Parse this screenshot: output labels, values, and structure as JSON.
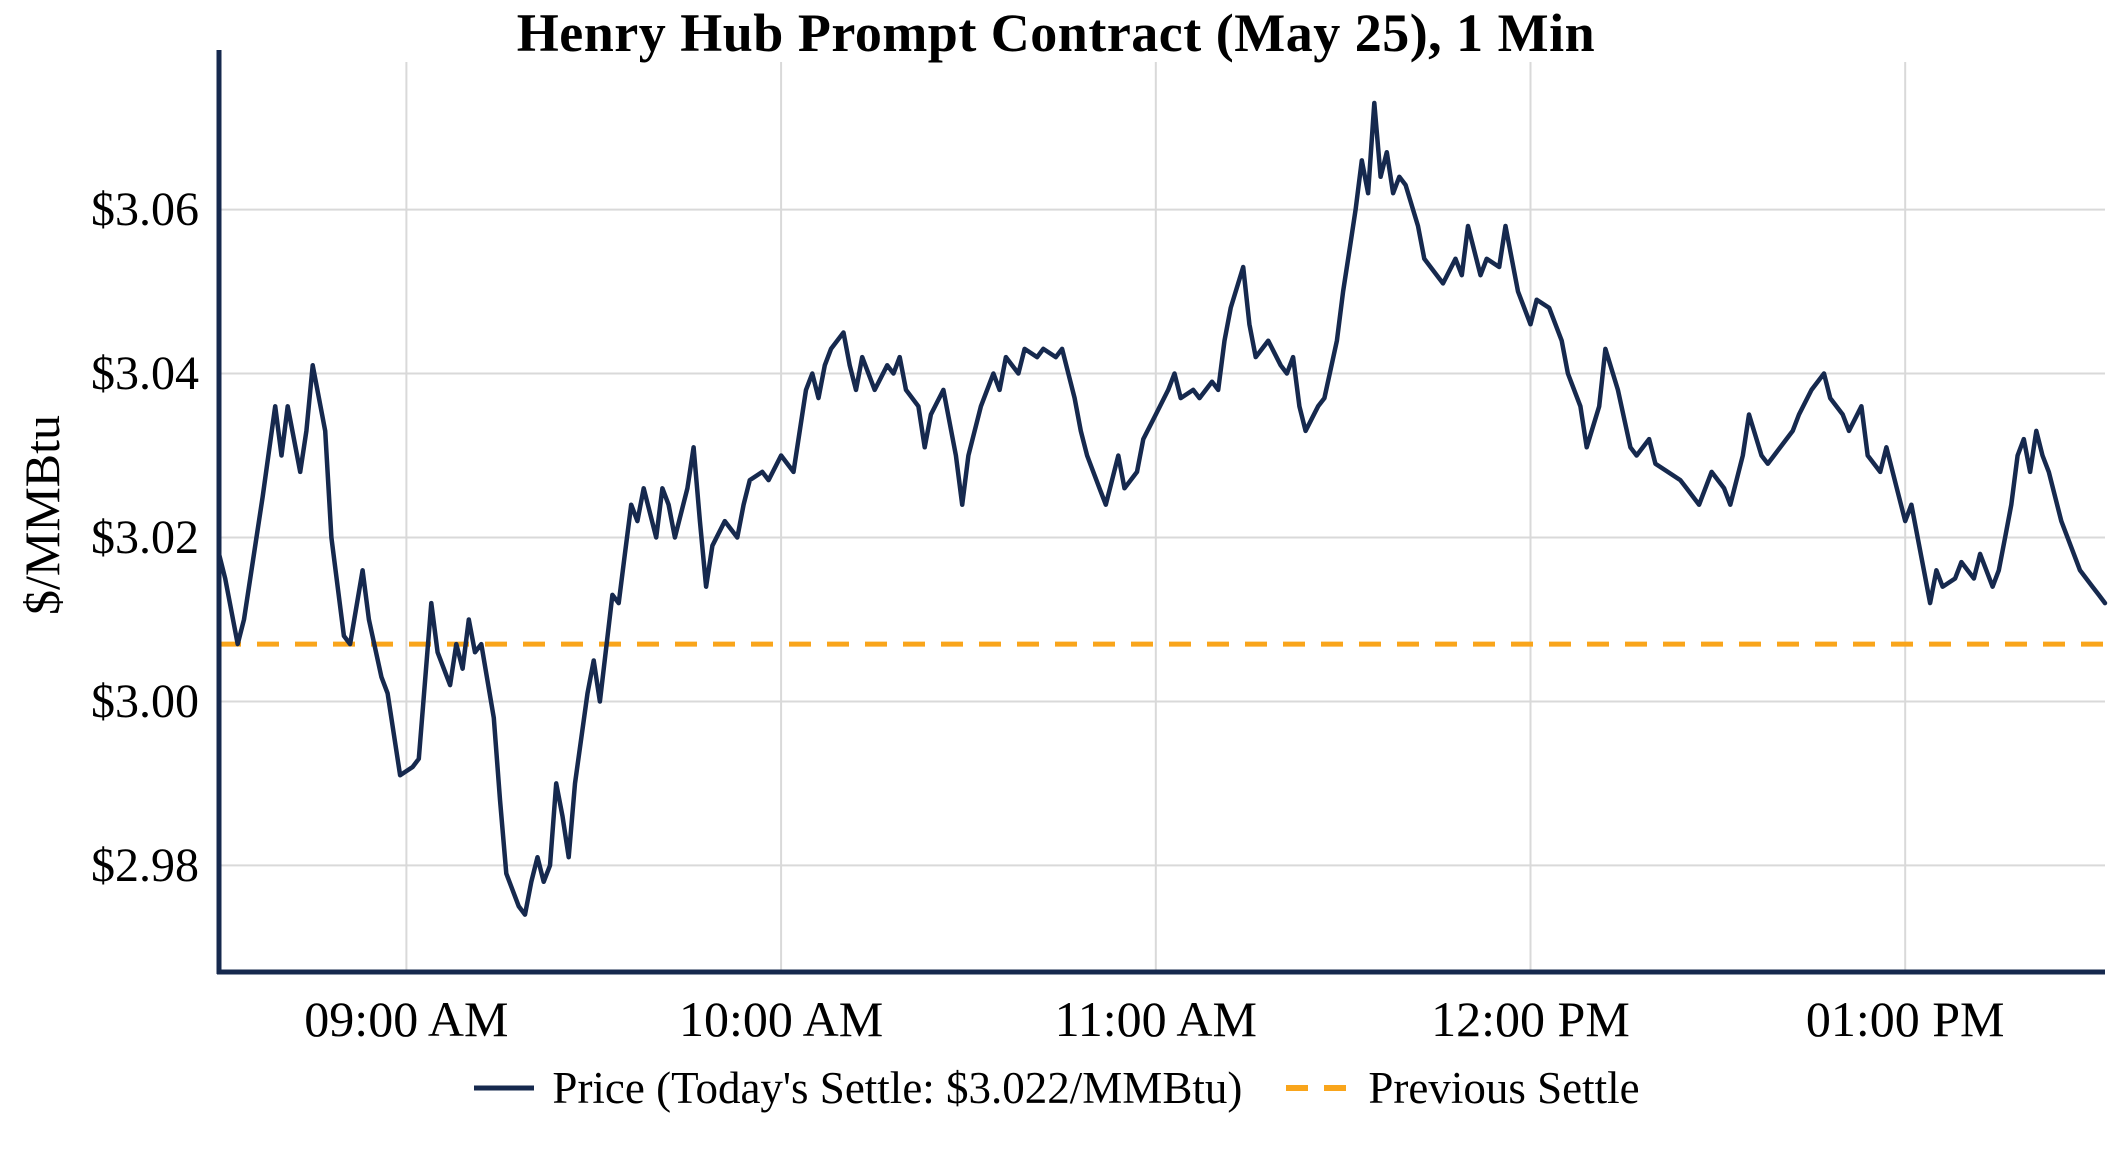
{
  "chart": {
    "title": "Henry Hub Prompt Contract (May 25), 1 Min",
    "ylabel": "$/MMBtu"
  },
  "legend": {
    "price_label": "Price (Today's Settle: $3.022/MMBtu)",
    "prev_settle_label": "Previous Settle"
  },
  "colors": {
    "price_line": "#16294e",
    "prev_settle": "#f9a51b",
    "grid": "#d9d9d9",
    "axis": "#16294e",
    "text": "#000000"
  },
  "chart_data": {
    "type": "line",
    "title": "Henry Hub Prompt Contract (May 25), 1 Min",
    "xlabel": "",
    "ylabel": "$/MMBtu",
    "x_unit": "minutes_since_midnight",
    "x_domain": [
      510,
      812
    ],
    "y_domain": [
      2.967,
      3.078
    ],
    "grid": true,
    "legend_position": "bottom",
    "todays_settle": 3.022,
    "previous_settle": {
      "name": "Previous Settle",
      "value": 3.007,
      "style": "dashed"
    },
    "x_ticks": [
      {
        "minutes": 540,
        "label": "09:00 AM"
      },
      {
        "minutes": 600,
        "label": "10:00 AM"
      },
      {
        "minutes": 660,
        "label": "11:00 AM"
      },
      {
        "minutes": 720,
        "label": "12:00 PM"
      },
      {
        "minutes": 780,
        "label": "01:00 PM"
      }
    ],
    "y_ticks": [
      {
        "value": 2.98,
        "label": "$2.98"
      },
      {
        "value": 3.0,
        "label": "$3.00"
      },
      {
        "value": 3.02,
        "label": "$3.02"
      },
      {
        "value": 3.04,
        "label": "$3.04"
      },
      {
        "value": 3.06,
        "label": "$3.06"
      }
    ],
    "series": [
      {
        "name": "Price (Today's Settle: $3.022/MMBtu)",
        "points": [
          [
            510,
            3.018
          ],
          [
            511,
            3.015
          ],
          [
            513,
            3.007
          ],
          [
            514,
            3.01
          ],
          [
            517,
            3.025
          ],
          [
            519,
            3.036
          ],
          [
            520,
            3.03
          ],
          [
            521,
            3.036
          ],
          [
            523,
            3.028
          ],
          [
            524,
            3.033
          ],
          [
            525,
            3.041
          ],
          [
            527,
            3.033
          ],
          [
            528,
            3.02
          ],
          [
            530,
            3.008
          ],
          [
            531,
            3.007
          ],
          [
            533,
            3.016
          ],
          [
            534,
            3.01
          ],
          [
            536,
            3.003
          ],
          [
            537,
            3.001
          ],
          [
            539,
            2.991
          ],
          [
            541,
            2.992
          ],
          [
            542,
            2.993
          ],
          [
            544,
            3.012
          ],
          [
            545,
            3.006
          ],
          [
            547,
            3.002
          ],
          [
            548,
            3.007
          ],
          [
            549,
            3.004
          ],
          [
            550,
            3.01
          ],
          [
            551,
            3.006
          ],
          [
            552,
            3.007
          ],
          [
            554,
            2.998
          ],
          [
            555,
            2.988
          ],
          [
            556,
            2.979
          ],
          [
            558,
            2.975
          ],
          [
            559,
            2.974
          ],
          [
            560,
            2.978
          ],
          [
            561,
            2.981
          ],
          [
            562,
            2.978
          ],
          [
            563,
            2.98
          ],
          [
            564,
            2.99
          ],
          [
            565,
            2.986
          ],
          [
            566,
            2.981
          ],
          [
            567,
            2.99
          ],
          [
            569,
            3.001
          ],
          [
            570,
            3.005
          ],
          [
            571,
            3.0
          ],
          [
            573,
            3.013
          ],
          [
            574,
            3.012
          ],
          [
            575,
            3.018
          ],
          [
            576,
            3.024
          ],
          [
            577,
            3.022
          ],
          [
            578,
            3.026
          ],
          [
            580,
            3.02
          ],
          [
            581,
            3.026
          ],
          [
            582,
            3.024
          ],
          [
            583,
            3.02
          ],
          [
            585,
            3.026
          ],
          [
            586,
            3.031
          ],
          [
            587,
            3.022
          ],
          [
            588,
            3.014
          ],
          [
            589,
            3.019
          ],
          [
            591,
            3.022
          ],
          [
            593,
            3.02
          ],
          [
            594,
            3.024
          ],
          [
            595,
            3.027
          ],
          [
            597,
            3.028
          ],
          [
            598,
            3.027
          ],
          [
            600,
            3.03
          ],
          [
            602,
            3.028
          ],
          [
            604,
            3.038
          ],
          [
            605,
            3.04
          ],
          [
            606,
            3.037
          ],
          [
            607,
            3.041
          ],
          [
            608,
            3.043
          ],
          [
            610,
            3.045
          ],
          [
            611,
            3.041
          ],
          [
            612,
            3.038
          ],
          [
            613,
            3.042
          ],
          [
            615,
            3.038
          ],
          [
            617,
            3.041
          ],
          [
            618,
            3.04
          ],
          [
            619,
            3.042
          ],
          [
            620,
            3.038
          ],
          [
            622,
            3.036
          ],
          [
            623,
            3.031
          ],
          [
            624,
            3.035
          ],
          [
            626,
            3.038
          ],
          [
            628,
            3.03
          ],
          [
            629,
            3.024
          ],
          [
            630,
            3.03
          ],
          [
            632,
            3.036
          ],
          [
            634,
            3.04
          ],
          [
            635,
            3.038
          ],
          [
            636,
            3.042
          ],
          [
            638,
            3.04
          ],
          [
            639,
            3.043
          ],
          [
            641,
            3.042
          ],
          [
            642,
            3.043
          ],
          [
            644,
            3.042
          ],
          [
            645,
            3.043
          ],
          [
            647,
            3.037
          ],
          [
            648,
            3.033
          ],
          [
            649,
            3.03
          ],
          [
            651,
            3.026
          ],
          [
            652,
            3.024
          ],
          [
            654,
            3.03
          ],
          [
            655,
            3.026
          ],
          [
            657,
            3.028
          ],
          [
            658,
            3.032
          ],
          [
            660,
            3.035
          ],
          [
            662,
            3.038
          ],
          [
            663,
            3.04
          ],
          [
            664,
            3.037
          ],
          [
            666,
            3.038
          ],
          [
            667,
            3.037
          ],
          [
            669,
            3.039
          ],
          [
            670,
            3.038
          ],
          [
            671,
            3.044
          ],
          [
            672,
            3.048
          ],
          [
            674,
            3.053
          ],
          [
            675,
            3.046
          ],
          [
            676,
            3.042
          ],
          [
            678,
            3.044
          ],
          [
            680,
            3.041
          ],
          [
            681,
            3.04
          ],
          [
            682,
            3.042
          ],
          [
            683,
            3.036
          ],
          [
            684,
            3.033
          ],
          [
            686,
            3.036
          ],
          [
            687,
            3.037
          ],
          [
            689,
            3.044
          ],
          [
            690,
            3.05
          ],
          [
            691,
            3.055
          ],
          [
            692,
            3.06
          ],
          [
            693,
            3.066
          ],
          [
            694,
            3.062
          ],
          [
            695,
            3.073
          ],
          [
            696,
            3.064
          ],
          [
            697,
            3.067
          ],
          [
            698,
            3.062
          ],
          [
            699,
            3.064
          ],
          [
            700,
            3.063
          ],
          [
            702,
            3.058
          ],
          [
            703,
            3.054
          ],
          [
            705,
            3.052
          ],
          [
            706,
            3.051
          ],
          [
            708,
            3.054
          ],
          [
            709,
            3.052
          ],
          [
            710,
            3.058
          ],
          [
            712,
            3.052
          ],
          [
            713,
            3.054
          ],
          [
            715,
            3.053
          ],
          [
            716,
            3.058
          ],
          [
            718,
            3.05
          ],
          [
            720,
            3.046
          ],
          [
            721,
            3.049
          ],
          [
            723,
            3.048
          ],
          [
            725,
            3.044
          ],
          [
            726,
            3.04
          ],
          [
            728,
            3.036
          ],
          [
            729,
            3.031
          ],
          [
            731,
            3.036
          ],
          [
            732,
            3.043
          ],
          [
            734,
            3.038
          ],
          [
            736,
            3.031
          ],
          [
            737,
            3.03
          ],
          [
            739,
            3.032
          ],
          [
            740,
            3.029
          ],
          [
            742,
            3.028
          ],
          [
            744,
            3.027
          ],
          [
            745,
            3.026
          ],
          [
            747,
            3.024
          ],
          [
            749,
            3.028
          ],
          [
            751,
            3.026
          ],
          [
            752,
            3.024
          ],
          [
            754,
            3.03
          ],
          [
            755,
            3.035
          ],
          [
            757,
            3.03
          ],
          [
            758,
            3.029
          ],
          [
            760,
            3.031
          ],
          [
            762,
            3.033
          ],
          [
            763,
            3.035
          ],
          [
            765,
            3.038
          ],
          [
            767,
            3.04
          ],
          [
            768,
            3.037
          ],
          [
            770,
            3.035
          ],
          [
            771,
            3.033
          ],
          [
            773,
            3.036
          ],
          [
            774,
            3.03
          ],
          [
            776,
            3.028
          ],
          [
            777,
            3.031
          ],
          [
            779,
            3.025
          ],
          [
            780,
            3.022
          ],
          [
            781,
            3.024
          ],
          [
            783,
            3.016
          ],
          [
            784,
            3.012
          ],
          [
            785,
            3.016
          ],
          [
            786,
            3.014
          ],
          [
            788,
            3.015
          ],
          [
            789,
            3.017
          ],
          [
            791,
            3.015
          ],
          [
            792,
            3.018
          ],
          [
            794,
            3.014
          ],
          [
            795,
            3.016
          ],
          [
            796,
            3.02
          ],
          [
            797,
            3.024
          ],
          [
            798,
            3.03
          ],
          [
            799,
            3.032
          ],
          [
            800,
            3.028
          ],
          [
            801,
            3.033
          ],
          [
            802,
            3.03
          ],
          [
            803,
            3.028
          ],
          [
            805,
            3.022
          ],
          [
            807,
            3.018
          ],
          [
            808,
            3.016
          ],
          [
            810,
            3.014
          ],
          [
            811,
            3.013
          ],
          [
            812,
            3.012
          ]
        ]
      }
    ]
  }
}
